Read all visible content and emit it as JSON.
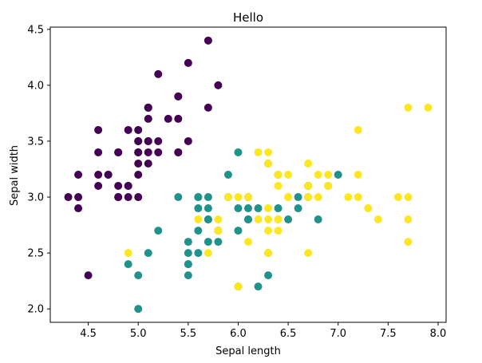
{
  "chart_data": {
    "type": "scatter",
    "title": "Hello",
    "xlabel": "Sepal length",
    "ylabel": "Sepal width",
    "xlim": [
      4.12,
      8.08
    ],
    "ylim": [
      1.88,
      4.52
    ],
    "xticks": [
      4.5,
      5.0,
      5.5,
      6.0,
      6.5,
      7.0,
      7.5,
      8.0
    ],
    "xtick_labels": [
      "4.5",
      "5.0",
      "5.5",
      "6.0",
      "6.5",
      "7.0",
      "7.5",
      "8.0"
    ],
    "yticks": [
      2.0,
      2.5,
      3.0,
      3.5,
      4.0,
      4.5
    ],
    "ytick_labels": [
      "2.0",
      "2.5",
      "3.0",
      "3.5",
      "4.0",
      "4.5"
    ],
    "grid": false,
    "legend": "none",
    "series": [
      {
        "color": "#440154",
        "points": [
          [
            5.1,
            3.5
          ],
          [
            4.9,
            3.0
          ],
          [
            4.7,
            3.2
          ],
          [
            4.6,
            3.1
          ],
          [
            5.0,
            3.6
          ],
          [
            5.4,
            3.9
          ],
          [
            4.6,
            3.4
          ],
          [
            5.0,
            3.4
          ],
          [
            4.4,
            2.9
          ],
          [
            4.9,
            3.1
          ],
          [
            5.4,
            3.7
          ],
          [
            4.8,
            3.4
          ],
          [
            4.8,
            3.0
          ],
          [
            4.3,
            3.0
          ],
          [
            5.8,
            4.0
          ],
          [
            5.7,
            4.4
          ],
          [
            5.4,
            3.9
          ],
          [
            5.1,
            3.5
          ],
          [
            5.7,
            3.8
          ],
          [
            5.1,
            3.8
          ],
          [
            5.4,
            3.4
          ],
          [
            5.1,
            3.7
          ],
          [
            4.6,
            3.6
          ],
          [
            5.1,
            3.3
          ],
          [
            4.8,
            3.4
          ],
          [
            5.0,
            3.0
          ],
          [
            5.0,
            3.4
          ],
          [
            5.2,
            3.5
          ],
          [
            5.2,
            3.4
          ],
          [
            4.7,
            3.2
          ],
          [
            4.8,
            3.1
          ],
          [
            5.4,
            3.4
          ],
          [
            5.2,
            4.1
          ],
          [
            5.5,
            4.2
          ],
          [
            4.9,
            3.1
          ],
          [
            5.0,
            3.2
          ],
          [
            5.5,
            3.5
          ],
          [
            4.9,
            3.6
          ],
          [
            4.4,
            3.0
          ],
          [
            5.1,
            3.4
          ],
          [
            5.0,
            3.5
          ],
          [
            4.5,
            2.3
          ],
          [
            4.4,
            3.2
          ],
          [
            5.0,
            3.5
          ],
          [
            5.1,
            3.8
          ],
          [
            4.8,
            3.0
          ],
          [
            5.1,
            3.8
          ],
          [
            4.6,
            3.2
          ],
          [
            5.3,
            3.7
          ],
          [
            5.0,
            3.3
          ]
        ]
      },
      {
        "color": "#21918c",
        "points": [
          [
            7.0,
            3.2
          ],
          [
            6.4,
            3.2
          ],
          [
            6.9,
            3.1
          ],
          [
            5.5,
            2.3
          ],
          [
            6.5,
            2.8
          ],
          [
            5.7,
            2.8
          ],
          [
            6.3,
            3.3
          ],
          [
            4.9,
            2.4
          ],
          [
            6.6,
            2.9
          ],
          [
            5.2,
            2.7
          ],
          [
            5.0,
            2.0
          ],
          [
            5.9,
            3.0
          ],
          [
            6.0,
            2.2
          ],
          [
            6.1,
            2.9
          ],
          [
            5.6,
            2.9
          ],
          [
            6.7,
            3.1
          ],
          [
            5.6,
            3.0
          ],
          [
            5.8,
            2.7
          ],
          [
            6.2,
            2.2
          ],
          [
            5.6,
            2.5
          ],
          [
            5.9,
            3.2
          ],
          [
            6.1,
            2.8
          ],
          [
            6.3,
            2.5
          ],
          [
            6.1,
            2.8
          ],
          [
            6.4,
            2.9
          ],
          [
            6.6,
            3.0
          ],
          [
            6.8,
            2.8
          ],
          [
            6.7,
            3.0
          ],
          [
            6.0,
            2.9
          ],
          [
            5.7,
            2.6
          ],
          [
            5.5,
            2.4
          ],
          [
            5.5,
            2.4
          ],
          [
            5.8,
            2.7
          ],
          [
            6.0,
            2.7
          ],
          [
            5.4,
            3.0
          ],
          [
            6.0,
            3.4
          ],
          [
            6.7,
            3.1
          ],
          [
            6.3,
            2.3
          ],
          [
            5.6,
            3.0
          ],
          [
            5.5,
            2.5
          ],
          [
            5.5,
            2.6
          ],
          [
            6.1,
            3.0
          ],
          [
            5.8,
            2.6
          ],
          [
            5.0,
            2.3
          ],
          [
            5.6,
            2.7
          ],
          [
            5.7,
            3.0
          ],
          [
            5.7,
            2.9
          ],
          [
            6.2,
            2.9
          ],
          [
            5.1,
            2.5
          ],
          [
            5.7,
            2.8
          ]
        ]
      },
      {
        "color": "#fde725",
        "points": [
          [
            6.3,
            3.3
          ],
          [
            5.8,
            2.7
          ],
          [
            7.1,
            3.0
          ],
          [
            6.3,
            2.9
          ],
          [
            6.5,
            3.0
          ],
          [
            7.6,
            3.0
          ],
          [
            4.9,
            2.5
          ],
          [
            7.3,
            2.9
          ],
          [
            6.7,
            2.5
          ],
          [
            7.2,
            3.6
          ],
          [
            6.5,
            3.2
          ],
          [
            6.4,
            2.7
          ],
          [
            6.8,
            3.0
          ],
          [
            5.7,
            2.5
          ],
          [
            5.8,
            2.8
          ],
          [
            6.4,
            3.2
          ],
          [
            6.5,
            3.0
          ],
          [
            7.7,
            3.8
          ],
          [
            7.7,
            2.6
          ],
          [
            6.0,
            2.2
          ],
          [
            6.9,
            3.2
          ],
          [
            5.6,
            2.8
          ],
          [
            7.7,
            2.8
          ],
          [
            6.3,
            2.7
          ],
          [
            6.7,
            3.3
          ],
          [
            7.2,
            3.2
          ],
          [
            6.2,
            2.8
          ],
          [
            6.1,
            3.0
          ],
          [
            6.4,
            2.8
          ],
          [
            7.2,
            3.0
          ],
          [
            7.4,
            2.8
          ],
          [
            7.9,
            3.8
          ],
          [
            6.4,
            2.8
          ],
          [
            6.3,
            2.8
          ],
          [
            6.1,
            2.6
          ],
          [
            7.7,
            3.0
          ],
          [
            6.3,
            3.4
          ],
          [
            6.4,
            3.1
          ],
          [
            6.0,
            3.0
          ],
          [
            6.9,
            3.1
          ],
          [
            6.7,
            3.1
          ],
          [
            6.9,
            3.1
          ],
          [
            5.8,
            2.7
          ],
          [
            6.8,
            3.2
          ],
          [
            6.7,
            3.3
          ],
          [
            6.7,
            3.0
          ],
          [
            6.3,
            2.5
          ],
          [
            6.5,
            3.0
          ],
          [
            6.2,
            3.4
          ],
          [
            5.9,
            3.0
          ]
        ]
      }
    ]
  }
}
